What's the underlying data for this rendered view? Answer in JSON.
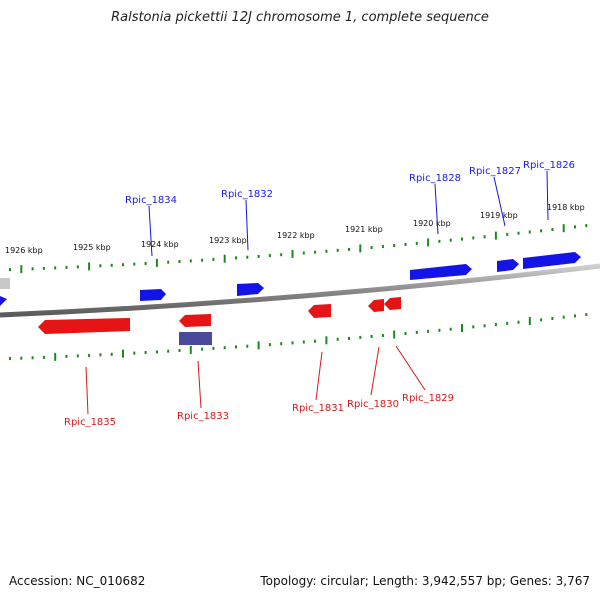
{
  "title": "Ralstonia pickettii 12J chromosome 1, complete sequence",
  "footer": {
    "accession": "Accession: NC_010682",
    "stats": "Topology: circular; Length: 3,942,557 bp; Genes: 3,767"
  },
  "ruler_labels": [
    "1926 kbp",
    "1925 kbp",
    "1924 kbp",
    "1923 kbp",
    "1922 kbp",
    "1921 kbp",
    "1920 kbp",
    "1919 kbp",
    "1918 kbp"
  ],
  "forward_genes": [
    "Rpic_1834",
    "Rpic_1832",
    "Rpic_1828",
    "Rpic_1827",
    "Rpic_1826"
  ],
  "reverse_genes": [
    "Rpic_1835",
    "Rpic_1833",
    "Rpic_1831",
    "Rpic_1830",
    "Rpic_1829"
  ],
  "colors": {
    "forward": "#1414e6",
    "reverse": "#e61414",
    "other": "#4a4a9a",
    "backbone": "#7a7a7a",
    "ruler": "#1a8a1a"
  }
}
